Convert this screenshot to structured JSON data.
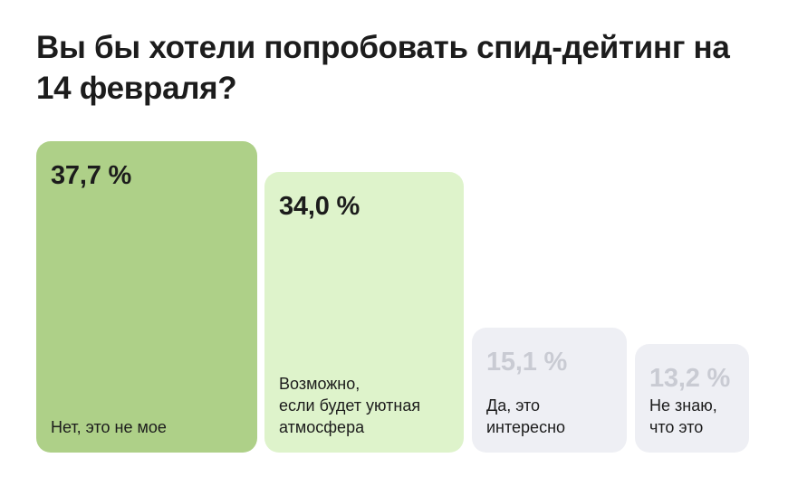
{
  "title": "Вы бы хотели попробовать спид-дейтинг на 14 февраля?",
  "chart_data": {
    "type": "bar",
    "title": "Вы бы хотели попробовать спид-дейтинг на 14 февраля?",
    "categories": [
      "Нет, это не мое",
      "Возможно,\nесли будет уютная\nатмосфера",
      "Да, это\nинтересно",
      "Не знаю,\nчто это"
    ],
    "values": [
      37.7,
      34.0,
      15.1,
      13.2
    ],
    "value_labels": [
      "37,7 %",
      "34,0 %",
      "15,1 %",
      "13,2 %"
    ],
    "colors": [
      "#aed088",
      "#def3cb",
      "#eeeff4",
      "#eeeff4"
    ],
    "value_colors": [
      "#1c1c1c",
      "#1c1c1c",
      "#c9cbd3",
      "#c9cbd3"
    ],
    "ylim": [
      0,
      37.7
    ],
    "grid": false
  }
}
